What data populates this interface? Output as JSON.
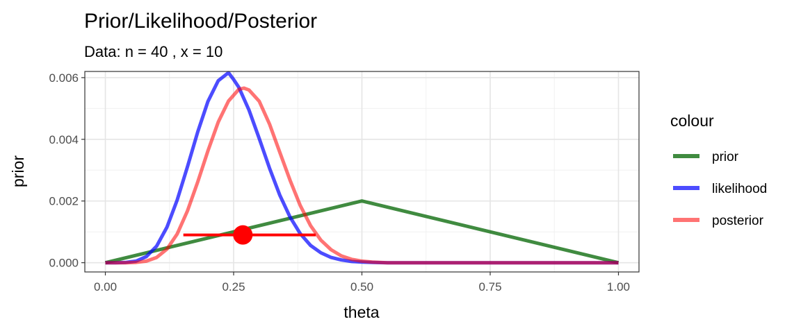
{
  "chart_data": {
    "type": "line",
    "title": "Prior/Likelihood/Posterior",
    "subtitle": "Data: n = 40 , x = 10",
    "xlabel": "theta",
    "ylabel": "prior",
    "xlim": [
      -0.04,
      1.04
    ],
    "ylim": [
      -0.0003,
      0.0062
    ],
    "x_ticks": [
      0,
      0.25,
      0.5,
      0.75,
      1
    ],
    "x_tick_labels": [
      "0.00",
      "0.25",
      "0.50",
      "0.75",
      "1.00"
    ],
    "y_ticks": [
      0,
      0.002,
      0.004,
      0.006
    ],
    "y_tick_labels": [
      "0.000",
      "0.002",
      "0.004",
      "0.006"
    ],
    "grid": true,
    "legend": {
      "title": "colour",
      "position": "right",
      "entries": [
        "prior",
        "likelihood",
        "posterior"
      ]
    },
    "series": [
      {
        "name": "prior",
        "color": "#006400",
        "opacity": 0.75,
        "x": [
          0,
          0.5,
          1
        ],
        "y": [
          0,
          0.002,
          0
        ]
      },
      {
        "name": "likelihood",
        "color": "#0000FF",
        "opacity": 0.7,
        "x": [
          0,
          0.02,
          0.04,
          0.06,
          0.08,
          0.1,
          0.12,
          0.14,
          0.16,
          0.18,
          0.2,
          0.22,
          0.24,
          0.25,
          0.26,
          0.28,
          0.3,
          0.32,
          0.34,
          0.36,
          0.38,
          0.4,
          0.42,
          0.44,
          0.46,
          0.48,
          0.5,
          0.52,
          0.55,
          0.6,
          0.7,
          0.8,
          0.9,
          1.0
        ],
        "y": [
          0,
          0,
          1e-05,
          5e-05,
          0.0002,
          0.00054,
          0.00115,
          0.00203,
          0.00311,
          0.00424,
          0.00523,
          0.0059,
          0.00616,
          0.00594,
          0.00569,
          0.00495,
          0.00402,
          0.00306,
          0.00219,
          0.00148,
          0.00094,
          0.00056,
          0.00032,
          0.00017,
          9e-05,
          4e-05,
          2e-05,
          1e-05,
          0,
          0,
          0,
          0,
          0,
          0
        ]
      },
      {
        "name": "posterior",
        "color": "#FF0000",
        "opacity": 0.55,
        "x": [
          0,
          0.02,
          0.04,
          0.06,
          0.08,
          0.1,
          0.12,
          0.14,
          0.16,
          0.18,
          0.2,
          0.22,
          0.24,
          0.26,
          0.27,
          0.28,
          0.3,
          0.32,
          0.34,
          0.36,
          0.38,
          0.4,
          0.42,
          0.44,
          0.46,
          0.48,
          0.5,
          0.52,
          0.55,
          0.6,
          0.7,
          0.8,
          0.9,
          1.0
        ],
        "y": [
          0,
          0,
          0,
          1e-05,
          5e-05,
          0.00017,
          0.00044,
          0.00093,
          0.00168,
          0.00262,
          0.00363,
          0.00456,
          0.00524,
          0.00562,
          0.00566,
          0.0056,
          0.00523,
          0.00449,
          0.00358,
          0.00267,
          0.00185,
          0.0012,
          0.00073,
          0.00042,
          0.00022,
          0.00011,
          5e-05,
          2e-05,
          0,
          0,
          0,
          0,
          0,
          0
        ]
      }
    ],
    "interval": {
      "name": "posterior",
      "color": "#FF0000",
      "x_low": 0.152,
      "x_high": 0.41,
      "y": 0.0009,
      "point_x": 0.268
    }
  }
}
